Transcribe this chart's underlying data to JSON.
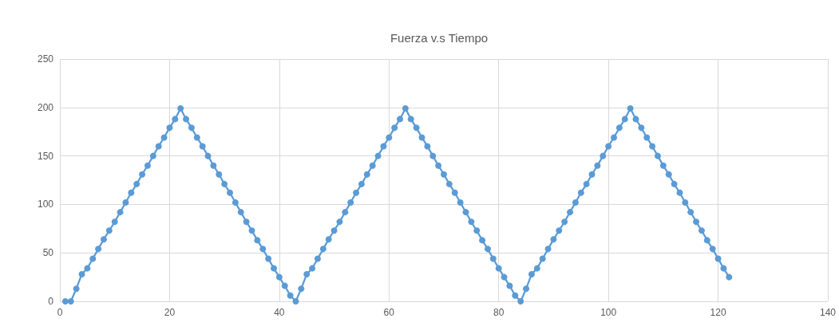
{
  "chart_data": {
    "type": "line",
    "title": "Fuerza v.s Tiempo",
    "x": [
      1,
      2,
      3,
      4,
      5,
      6,
      7,
      8,
      9,
      10,
      11,
      12,
      13,
      14,
      15,
      16,
      17,
      18,
      19,
      20,
      21,
      22,
      23,
      24,
      25,
      26,
      27,
      28,
      29,
      30,
      31,
      32,
      33,
      34,
      35,
      36,
      37,
      38,
      39,
      40,
      41,
      42,
      43,
      44,
      45,
      46,
      47,
      48,
      49,
      50,
      51,
      52,
      53,
      54,
      55,
      56,
      57,
      58,
      59,
      60,
      61,
      62,
      63,
      64,
      65,
      66,
      67,
      68,
      69,
      70,
      71,
      72,
      73,
      74,
      75,
      76,
      77,
      78,
      79,
      80,
      81,
      82,
      83,
      84,
      85,
      86,
      87,
      88,
      89,
      90,
      91,
      92,
      93,
      94,
      95,
      96,
      97,
      98,
      99,
      100,
      101,
      102,
      103,
      104,
      105,
      106,
      107,
      108,
      109,
      110,
      111,
      112,
      113,
      114,
      115,
      116,
      117,
      118,
      119,
      120,
      121,
      122
    ],
    "series": [
      {
        "color": "#5b9bd5",
        "values": [
          0,
          0,
          13,
          28,
          34,
          44,
          54,
          64,
          73,
          82,
          92,
          102,
          112,
          121,
          131,
          140,
          150,
          160,
          169,
          179,
          188,
          199,
          188,
          179,
          169,
          160,
          150,
          140,
          131,
          121,
          112,
          102,
          92,
          82,
          73,
          63,
          54,
          44,
          34,
          25,
          16,
          6,
          0,
          13,
          28,
          34,
          44,
          54,
          64,
          73,
          82,
          92,
          102,
          112,
          121,
          131,
          140,
          150,
          160,
          169,
          179,
          188,
          199,
          188,
          179,
          169,
          160,
          150,
          140,
          131,
          121,
          112,
          102,
          92,
          82,
          73,
          63,
          54,
          44,
          34,
          25,
          16,
          6,
          0,
          13,
          28,
          34,
          44,
          54,
          64,
          73,
          82,
          92,
          102,
          112,
          121,
          131,
          140,
          150,
          160,
          169,
          179,
          188,
          199,
          188,
          179,
          169,
          160,
          150,
          140,
          131,
          121,
          112,
          102,
          92,
          82,
          73,
          63,
          54,
          44,
          34,
          25
        ]
      }
    ],
    "xlim": [
      0,
      140
    ],
    "xticks": [
      0,
      20,
      40,
      60,
      80,
      100,
      120,
      140
    ],
    "ylim": [
      0,
      250
    ],
    "yticks": [
      0,
      50,
      100,
      150,
      200,
      250
    ],
    "grid": true,
    "marker": "circle",
    "line_style": "solid"
  }
}
